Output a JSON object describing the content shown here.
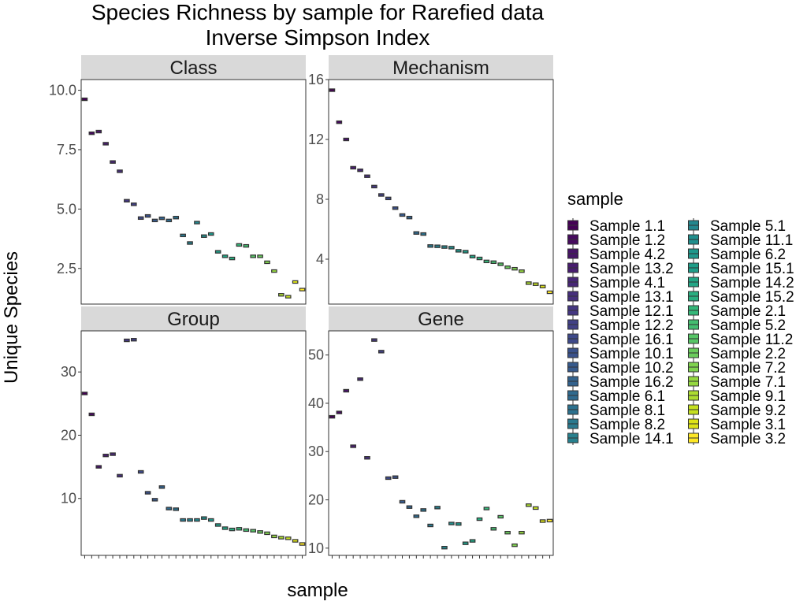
{
  "title": "Species Richness by sample for Rarefied data",
  "subtitle": "Inverse Simpson Index",
  "ylabel": "Unique Species",
  "xlabel": "sample",
  "legend": {
    "title": "sample",
    "position": "right"
  },
  "chart_data": {
    "type": "boxplot",
    "grid": false,
    "samples": [
      "Sample 1.1",
      "Sample 1.2",
      "Sample 4.2",
      "Sample 13.2",
      "Sample 4.1",
      "Sample 13.1",
      "Sample 12.1",
      "Sample 12.2",
      "Sample 16.1",
      "Sample 10.1",
      "Sample 10.2",
      "Sample 16.2",
      "Sample 6.1",
      "Sample 8.1",
      "Sample 8.2",
      "Sample 14.1",
      "Sample 5.1",
      "Sample 11.1",
      "Sample 6.2",
      "Sample 15.1",
      "Sample 14.2",
      "Sample 15.2",
      "Sample 2.1",
      "Sample 5.2",
      "Sample 11.2",
      "Sample 2.2",
      "Sample 7.2",
      "Sample 7.1",
      "Sample 9.1",
      "Sample 9.2",
      "Sample 3.1",
      "Sample 3.2"
    ],
    "colors": [
      "#440154",
      "#460B5E",
      "#471467",
      "#481D6F",
      "#472676",
      "#462F7C",
      "#443781",
      "#414085",
      "#3E4989",
      "#3A518B",
      "#375A8C",
      "#33628D",
      "#306A8E",
      "#2C718E",
      "#2A798E",
      "#27808E",
      "#24878E",
      "#218F8D",
      "#1F978B",
      "#1F9E89",
      "#22A685",
      "#29AE80",
      "#35B779",
      "#44BE70",
      "#56C566",
      "#6ACC5C",
      "#7FD34E",
      "#95D840",
      "#ACDC30",
      "#C5E021",
      "#DDE318",
      "#FDE725"
    ],
    "panels": [
      {
        "label": "Class",
        "ylim": [
          1.0,
          10.45
        ],
        "ticks": [
          2.5,
          5.0,
          7.5,
          10.0
        ],
        "tick_labels": [
          "2.5",
          "5.0",
          "7.5",
          "10.0"
        ],
        "values": [
          9.62,
          8.19,
          8.26,
          7.75,
          6.98,
          6.59,
          5.35,
          5.2,
          4.62,
          4.71,
          4.52,
          4.61,
          4.52,
          4.64,
          3.89,
          3.57,
          4.43,
          3.86,
          3.95,
          3.2,
          3.01,
          2.92,
          3.49,
          3.45,
          3.01,
          3.01,
          2.76,
          2.39,
          1.39,
          1.31,
          1.93,
          1.61
        ]
      },
      {
        "label": "Mechanism",
        "ylim": [
          1.0,
          16.0
        ],
        "ticks": [
          4,
          8,
          12,
          16
        ],
        "tick_labels": [
          "4",
          "8",
          "12",
          "16"
        ],
        "values": [
          15.29,
          13.15,
          12.0,
          10.11,
          9.94,
          9.54,
          8.85,
          8.29,
          8.06,
          7.41,
          6.95,
          6.78,
          5.75,
          5.68,
          4.88,
          4.86,
          4.81,
          4.77,
          4.56,
          4.5,
          4.17,
          4.05,
          3.85,
          3.8,
          3.66,
          3.46,
          3.36,
          3.2,
          2.4,
          2.33,
          2.17,
          1.79
        ]
      },
      {
        "label": "Group",
        "ylim": [
          1.0,
          36.5
        ],
        "ticks": [
          10,
          20,
          30
        ],
        "tick_labels": [
          "10",
          "20",
          "30"
        ],
        "values": [
          26.6,
          23.3,
          15.0,
          16.8,
          17.0,
          13.6,
          35.0,
          35.1,
          14.2,
          10.9,
          9.8,
          11.8,
          8.4,
          8.3,
          6.6,
          6.6,
          6.6,
          6.9,
          6.6,
          5.8,
          5.3,
          5.1,
          5.2,
          5.0,
          4.9,
          4.7,
          4.5,
          4.0,
          3.8,
          3.7,
          3.3,
          2.8
        ]
      },
      {
        "label": "Gene",
        "ylim": [
          8.5,
          55.0
        ],
        "ticks": [
          10,
          20,
          30,
          40,
          50
        ],
        "tick_labels": [
          "10",
          "20",
          "30",
          "40",
          "50"
        ],
        "values": [
          37.2,
          38.1,
          42.6,
          31.1,
          45.0,
          28.7,
          53.1,
          50.7,
          24.5,
          24.7,
          19.6,
          18.5,
          16.6,
          17.9,
          14.7,
          18.4,
          10.1,
          15.1,
          15.0,
          11.0,
          11.5,
          16.0,
          18.2,
          14.0,
          16.5,
          13.2,
          10.6,
          13.2,
          18.9,
          18.3,
          15.6,
          15.7
        ]
      }
    ]
  }
}
